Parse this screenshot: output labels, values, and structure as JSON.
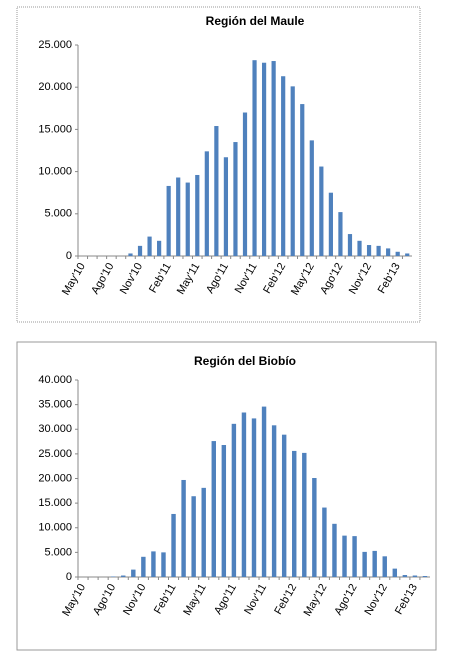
{
  "chart_data": [
    {
      "type": "bar",
      "title": "Región del Maule",
      "color": "#4f81bd",
      "categories": [
        "May'10",
        null,
        null,
        "Ago'10",
        null,
        null,
        "Nov'10",
        null,
        null,
        "Feb'11",
        null,
        null,
        "May'11",
        null,
        null,
        "Ago'11",
        null,
        null,
        "Nov'11",
        null,
        null,
        "Feb'12",
        null,
        null,
        "May'12",
        null,
        null,
        "Ago'12",
        null,
        null,
        "Nov'12",
        null,
        null,
        "Feb'13",
        null
      ],
      "values": [
        0,
        0,
        0,
        0,
        0,
        300,
        1200,
        2300,
        1800,
        8300,
        9300,
        8700,
        9600,
        12400,
        15400,
        11700,
        13500,
        17000,
        23200,
        22900,
        23100,
        21300,
        20100,
        18000,
        13700,
        10600,
        7500,
        5200,
        2600,
        1800,
        1300,
        1200,
        900,
        500,
        300
      ],
      "ylim": [
        0,
        25000
      ],
      "yticks": [
        0,
        {
          "value": 5000,
          "label": "5.000"
        },
        {
          "value": 10000,
          "label": "10.000"
        },
        {
          "value": 15000,
          "label": "15.000"
        },
        {
          "value": 20000,
          "label": "20.000"
        },
        {
          "value": 25000,
          "label": "25.000"
        }
      ]
    },
    {
      "type": "bar",
      "title": "Región del Biobío",
      "color": "#4f81bd",
      "categories": [
        "May'10",
        null,
        null,
        "Ago'10",
        null,
        null,
        "Nov'10",
        null,
        null,
        "Feb'11",
        null,
        null,
        "May'11",
        null,
        null,
        "Ago'11",
        null,
        null,
        "Nov'11",
        null,
        null,
        "Feb'12",
        null,
        null,
        "May'12",
        null,
        null,
        "Ago'12",
        null,
        null,
        "Nov'12",
        null,
        null,
        "Feb'13",
        null
      ],
      "values": [
        0,
        0,
        0,
        100,
        300,
        1500,
        4100,
        5200,
        5000,
        12800,
        19700,
        16400,
        18100,
        27600,
        26800,
        31100,
        33400,
        32200,
        34600,
        30800,
        28900,
        25600,
        25200,
        20100,
        14100,
        10800,
        8400,
        8300,
        5100,
        5300,
        4200,
        1700,
        400,
        300,
        200
      ],
      "ylim": [
        0,
        40000
      ],
      "yticks": [
        0,
        {
          "value": 5000,
          "label": "5.000"
        },
        {
          "value": 10000,
          "label": "10.000"
        },
        {
          "value": 15000,
          "label": "15.000"
        },
        {
          "value": 20000,
          "label": "20.000"
        },
        {
          "value": 25000,
          "label": "25.000"
        },
        {
          "value": 30000,
          "label": "30.000"
        },
        {
          "value": 35000,
          "label": "35.000"
        },
        {
          "value": 40000,
          "label": "40.000"
        }
      ]
    }
  ]
}
